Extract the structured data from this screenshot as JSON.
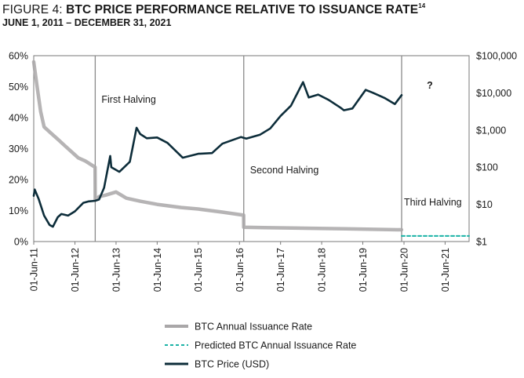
{
  "title": {
    "label": "FIGURE 4:",
    "text": "BTC PRICE PERFORMANCE RELATIVE TO ISSUANCE RATE",
    "footnote": "14"
  },
  "subtitle": "JUNE 1, 2011 – DECEMBER 31, 2021",
  "chart_data": {
    "type": "line",
    "x_range": [
      "2011-06-01",
      "2021-12-31"
    ],
    "x_ticks": [
      "01-Jun-11",
      "01-Jun-12",
      "01-Jun-13",
      "01-Jun-14",
      "01-Jun-15",
      "01-Jun-16",
      "01-Jun-17",
      "01-Jun-18",
      "01-Jun-19",
      "01-Jun-20",
      "01-Jun-21"
    ],
    "x_tick_dates": [
      "2011-06-01",
      "2012-06-01",
      "2013-06-01",
      "2014-06-01",
      "2015-06-01",
      "2016-06-01",
      "2017-06-01",
      "2018-06-01",
      "2019-06-01",
      "2020-06-01",
      "2021-06-01"
    ],
    "y_left": {
      "ticks": [
        "0%",
        "10%",
        "20%",
        "30%",
        "40%",
        "50%",
        "60%"
      ],
      "values": [
        0,
        10,
        20,
        30,
        40,
        50,
        60
      ],
      "range": [
        0,
        60
      ]
    },
    "y_right": {
      "ticks": [
        "$1",
        "$10",
        "$100",
        "$1,000",
        "$10,000",
        "$100,000"
      ],
      "values": [
        1,
        10,
        100,
        1000,
        10000,
        100000
      ],
      "range": [
        1,
        100000
      ],
      "scale": "log"
    },
    "halvings": [
      {
        "label": "First Halving",
        "date": "2012-11-28"
      },
      {
        "label": "Second Halving",
        "date": "2016-07-09"
      },
      {
        "label": "Third Halving",
        "date": "2020-05-11"
      }
    ],
    "annotation": "?",
    "legend_position": "bottom",
    "series": [
      {
        "name": "BTC Annual Issuance Rate",
        "color": "#a9a7a8",
        "axis": "left",
        "x": [
          "2011-06-01",
          "2011-07-01",
          "2011-08-01",
          "2011-09-01",
          "2011-11-01",
          "2012-01-01",
          "2012-03-01",
          "2012-05-01",
          "2012-07-01",
          "2012-09-01",
          "2012-11-27",
          "2012-11-28",
          "2013-01-01",
          "2013-03-01",
          "2013-06-01",
          "2013-09-01",
          "2014-01-01",
          "2014-06-01",
          "2015-01-01",
          "2015-06-01",
          "2016-01-01",
          "2016-07-08",
          "2016-07-09",
          "2017-01-01",
          "2018-01-01",
          "2019-01-01",
          "2020-05-10"
        ],
        "values": [
          58,
          50,
          42,
          37,
          35,
          33,
          31,
          29,
          27,
          26,
          24,
          13.5,
          14.5,
          15,
          16,
          14,
          13,
          12,
          11,
          10.5,
          9.5,
          8.5,
          4.6,
          4.5,
          4.3,
          4.1,
          3.8
        ]
      },
      {
        "name": "Predicted BTC Annual Issuance Rate",
        "color": "#1bb3a6",
        "axis": "left",
        "style": "dashed",
        "x": [
          "2020-05-11",
          "2021-12-31"
        ],
        "values": [
          1.8,
          1.8
        ]
      },
      {
        "name": "BTC Price (USD)",
        "color": "#0d2d3a",
        "axis": "right",
        "x": [
          "2011-06-01",
          "2011-06-10",
          "2011-07-15",
          "2011-09-01",
          "2011-10-20",
          "2011-11-18",
          "2011-12-31",
          "2012-02-01",
          "2012-04-01",
          "2012-06-01",
          "2012-08-15",
          "2012-10-01",
          "2012-11-28",
          "2013-01-01",
          "2013-02-15",
          "2013-04-10",
          "2013-04-20",
          "2013-07-01",
          "2013-10-01",
          "2013-11-30",
          "2014-01-01",
          "2014-03-01",
          "2014-06-01",
          "2014-09-01",
          "2015-01-14",
          "2015-06-01",
          "2015-10-01",
          "2016-01-01",
          "2016-06-15",
          "2016-08-01",
          "2016-12-01",
          "2017-03-01",
          "2017-06-01",
          "2017-09-01",
          "2017-12-17",
          "2018-02-06",
          "2018-05-01",
          "2018-08-01",
          "2018-11-15",
          "2018-12-15",
          "2019-03-01",
          "2019-06-26",
          "2019-09-01",
          "2019-12-15",
          "2020-03-12",
          "2020-05-11"
        ],
        "values": [
          17,
          25,
          14,
          5,
          2.8,
          2.5,
          4.5,
          5.5,
          5,
          6.5,
          11,
          12,
          12.5,
          13.5,
          28,
          200,
          100,
          75,
          140,
          1150,
          780,
          600,
          630,
          450,
          180,
          230,
          240,
          430,
          650,
          590,
          750,
          1100,
          2400,
          4500,
          19500,
          7500,
          9000,
          6500,
          4000,
          3400,
          3800,
          12000,
          10000,
          7200,
          5000,
          8700
        ]
      }
    ]
  }
}
